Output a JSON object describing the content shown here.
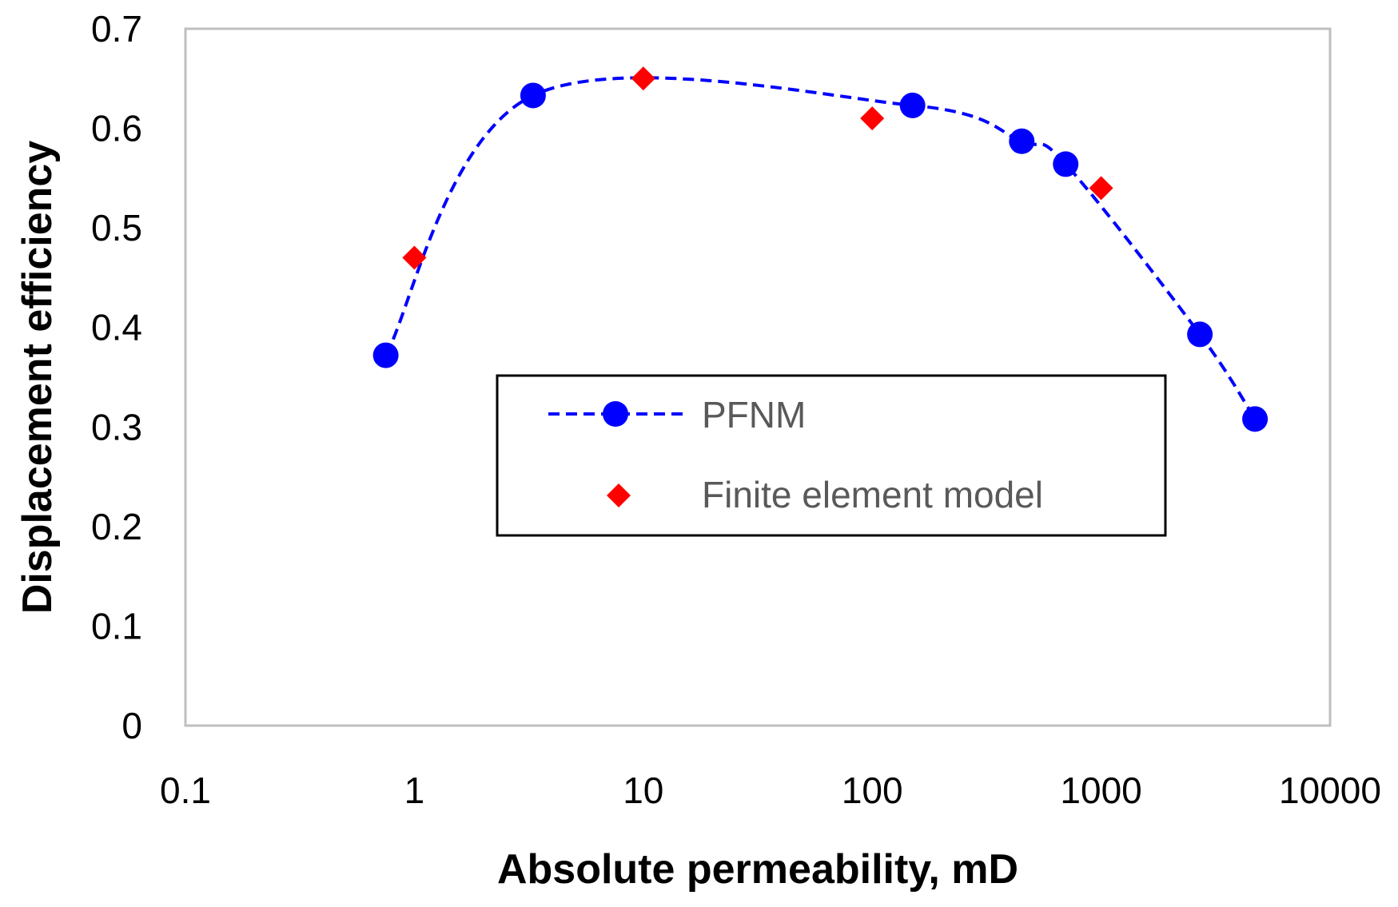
{
  "chart_data": {
    "type": "scatter",
    "xlabel": "Absolute permeability, mD",
    "ylabel": "Displacement efficiency",
    "x_scale": "log",
    "xlim": [
      0.1,
      10000
    ],
    "ylim": [
      0,
      0.7
    ],
    "x_ticks": [
      "0.1",
      "1",
      "10",
      "100",
      "1000",
      "10000"
    ],
    "y_ticks": [
      "0",
      "0.1",
      "0.2",
      "0.3",
      "0.4",
      "0.5",
      "0.6",
      "0.7"
    ],
    "grid": false,
    "legend_position": "center-right",
    "series": [
      {
        "name": "PFNM",
        "style": "dashed line with circle markers",
        "color": "#0000FF",
        "x": [
          0.75,
          3.3,
          150,
          450,
          700,
          2700,
          4700
        ],
        "y": [
          0.372,
          0.633,
          0.623,
          0.587,
          0.564,
          0.393,
          0.308
        ]
      },
      {
        "name": "Finite element model",
        "style": "diamond markers",
        "color": "#FF0000",
        "x": [
          1,
          10,
          100,
          1000
        ],
        "y": [
          0.47,
          0.65,
          0.61,
          0.54
        ]
      }
    ]
  }
}
